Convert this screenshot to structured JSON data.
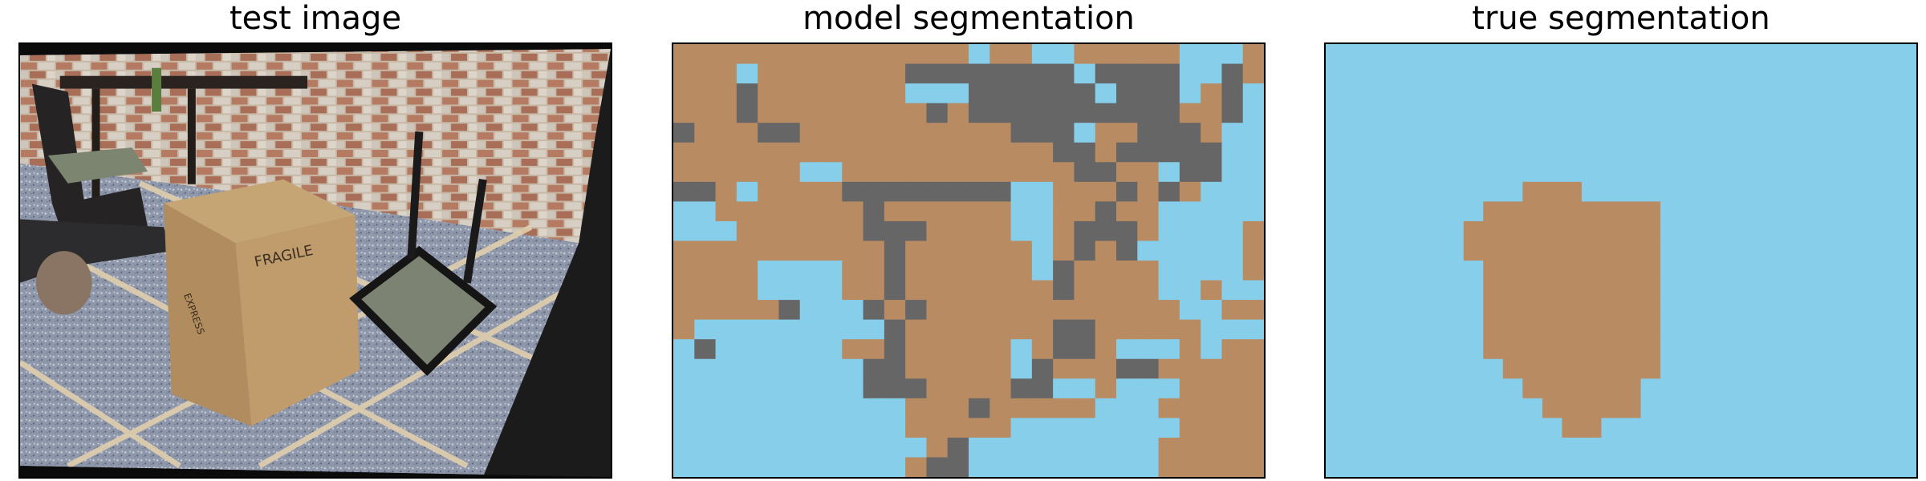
{
  "panels": [
    {
      "title": "test image"
    },
    {
      "title": "model segmentation"
    },
    {
      "title": "true segmentation"
    }
  ],
  "colors": {
    "floor": "#B88B63",
    "background": "#87CEEB",
    "wall": "#666666"
  },
  "photo_text": {
    "box_label": "FRAGILE",
    "box_brand": "EXPRESS"
  },
  "segmentation": {
    "legend_codes": {
      "F": "floor",
      "B": "background",
      "G": "wall"
    },
    "model_grid": [
      "FFFFFFFFFFFFFFBFFBBFFFFFBBBF",
      "FFFBFFFFFFFGGGGGGGGBGGGGBBGF",
      "FFFGFFFFFFFBBBGGGGGGBGGGBFGB",
      "FFFGFFFFFFFFGFGGGGGGGGGGFFGB",
      "GFFFGGFFFFFFFFFFGGGBFFGGGFBB",
      "FFFFFFFFFFFFFFFFFFGGFGGGGGBB",
      "FFFFFFBBFFFFFFFFFFFGGFFBGGBB",
      "GGFBFFFFGGGGGGGGBBFFFGFGFBBB",
      "BBFFFFFFFGFFFFFFBBFFGFFBBBBB",
      "BBBFFFFFFGGGFFFFBBFGGGFBBBBF",
      "FFFFFFFFFFGFFFFFFBFGFGBBBBBF",
      "FFFFBBBBFFGFFFFFFBGFFFFBBBBF",
      "FFFFBBBBFFGFFFFFFFGFFFFBBFBB",
      "FFFFFGBBBGFGFFFFFFFFFFFFBBFF",
      "FBBBBBBBBBGFFFFFFFGGFFFFFBBB",
      "BGBBBBBBFFGFFFFFBFGGFBBBFBFF",
      "BBBBBBBBBGGFFFFFBGFFFGGFFFFF",
      "BBBBBBBBBGGGFFFFGGBBFBBBFFFF",
      "BBBBBBBBBBBFFFGFFFFFBBBFFFFF",
      "BBBBBBBBBBBFFFFFBBBBBBBBFFFF",
      "BBBBBBBBBBBBFGBBBBBBBBBFFFFF",
      "BBBBBBBBBBBFGGBBBBBBBBBFFFFF"
    ],
    "true_grid": [
      "BBBBBBBBBBBBBBBBBBBBBBBBBBBBBB",
      "BBBBBBBBBBBBBBBBBBBBBBBBBBBBBB",
      "BBBBBBBBBBBBBBBBBBBBBBBBBBBBBB",
      "BBBBBBBBBBBBBBBBBBBBBBBBBBBBBB",
      "BBBBBBBBBBBBBBBBBBBBBBBBBBBBBB",
      "BBBBBBBBBBBBBBBBBBBBBBBBBBBBBB",
      "BBBBBBBBBBBBBBBBBBBBBBBBBBBBBB",
      "BBBBBBBBBBFFFBBBBBBBBBBBBBBBBB",
      "BBBBBBBBFFFFFFFFFBBBBBBBBBBBBB",
      "BBBBBBBFFFFFFFFFFBBBBBBBBBBBBB",
      "BBBBBBBFFFFFFFFFFBBBBBBBBBBBBB",
      "BBBBBBBBFFFFFFFFFBBBBBBBBBBBBB",
      "BBBBBBBBFFFFFFFFFBBBBBBBBBBBBB",
      "BBBBBBBBFFFFFFFFFBBBBBBBBBBBBB",
      "BBBBBBBBFFFFFFFFFBBBBBBBBBBBBB",
      "BBBBBBBBFFFFFFFFFBBBBBBBBBBBBB",
      "BBBBBBBBBFFFFFFFFBBBBBBBBBBBBB",
      "BBBBBBBBBBFFFFFFBBBBBBBBBBBBBB",
      "BBBBBBBBBBBFFFFFBBBBBBBBBBBBBB",
      "BBBBBBBBBBBBFFBBBBBBBBBBBBBBBB",
      "BBBBBBBBBBBBBBBBBBBBBBBBBBBBBB",
      "BBBBBBBBBBBBBBBBBBBBBBBBBBBBBB"
    ]
  }
}
